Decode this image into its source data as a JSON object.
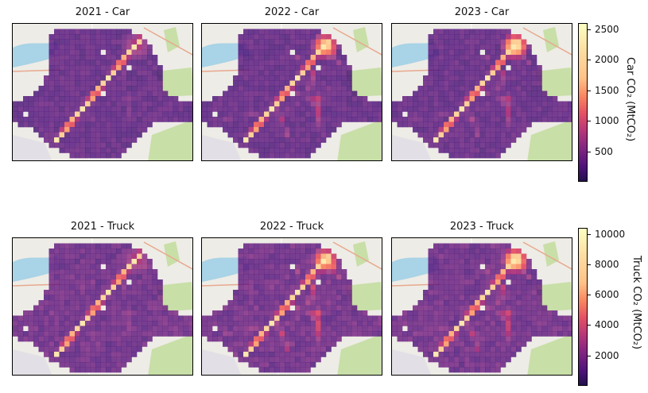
{
  "panels": [
    {
      "title": "2021 - Car",
      "row": 0,
      "col": 0,
      "year": "2021",
      "mode": "car"
    },
    {
      "title": "2022 - Car",
      "row": 0,
      "col": 1,
      "year": "2022",
      "mode": "car"
    },
    {
      "title": "2023 - Car",
      "row": 0,
      "col": 2,
      "year": "2023",
      "mode": "car"
    },
    {
      "title": "2021 - Truck",
      "row": 1,
      "col": 0,
      "year": "2021",
      "mode": "truck"
    },
    {
      "title": "2022 - Truck",
      "row": 1,
      "col": 1,
      "year": "2022",
      "mode": "truck"
    },
    {
      "title": "2023 - Truck",
      "row": 1,
      "col": 2,
      "year": "2023",
      "mode": "truck"
    }
  ],
  "colorbars": {
    "car": {
      "label": "Car CO₂ (MtCO₂)",
      "ticks": [
        "500",
        "1000",
        "1500",
        "2000",
        "2500"
      ],
      "tick_values": [
        500,
        1000,
        1500,
        2000,
        2500
      ],
      "min": 0,
      "max": 2600
    },
    "truck": {
      "label": "Truck CO₂ (MtCO₂)",
      "ticks": [
        "2000",
        "4000",
        "6000",
        "8000",
        "10000"
      ],
      "tick_values": [
        2000,
        4000,
        6000,
        8000,
        10000
      ],
      "min": 0,
      "max": 10400
    }
  },
  "colormap": "magma",
  "map_colors": {
    "water": "#a9d3e6",
    "park": "#c8dfa8",
    "land": "#eeece6",
    "road": "#e7a98f"
  }
}
